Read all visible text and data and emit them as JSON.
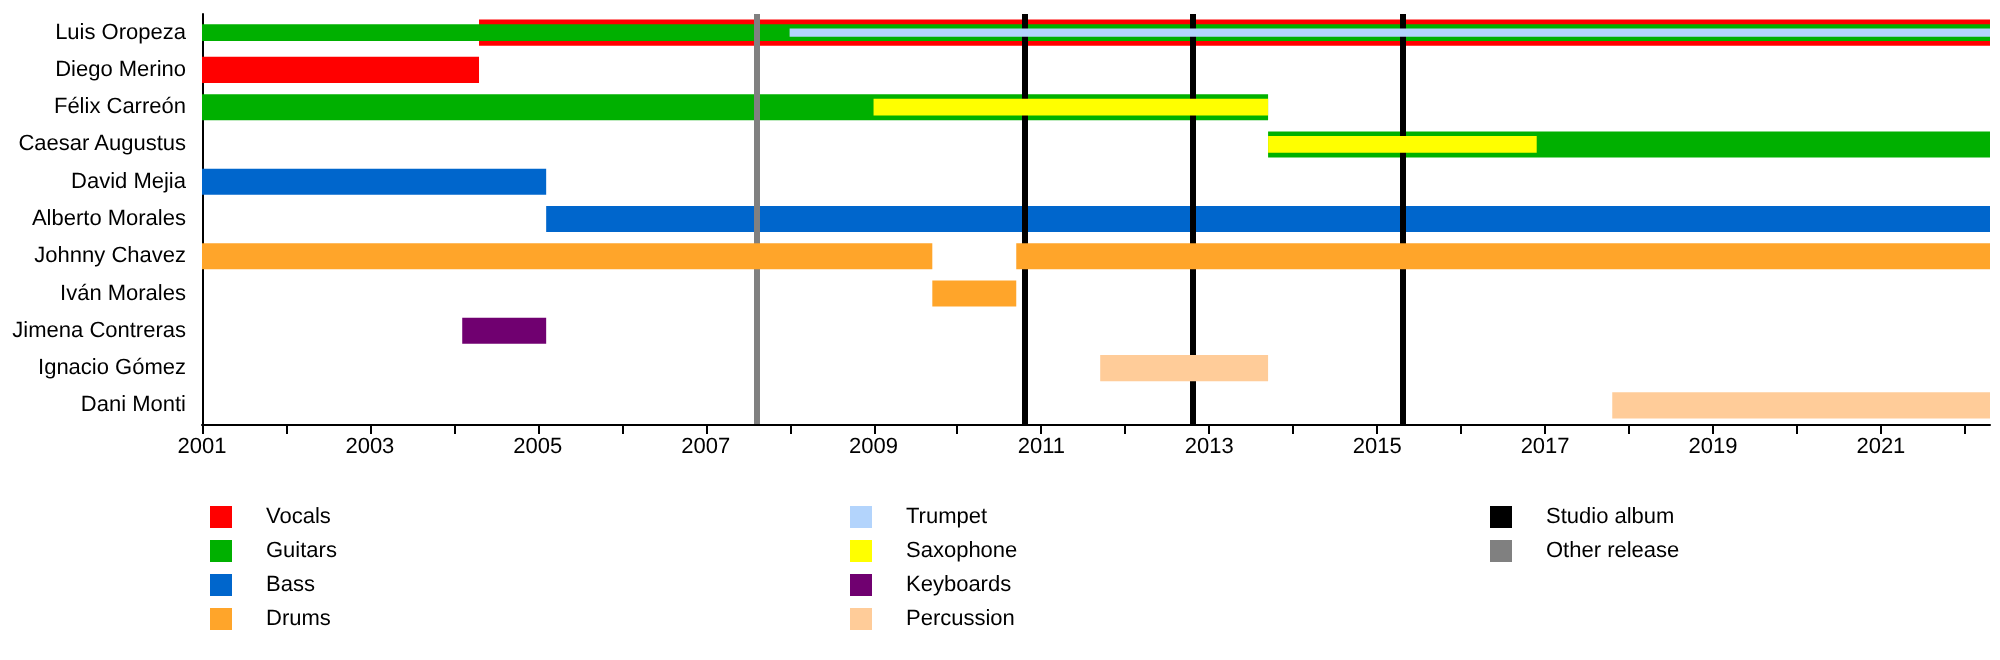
{
  "chart_data": {
    "type": "bar",
    "orientation": "horizontal",
    "categories": [
      "Luis Oropeza",
      "Diego Merino",
      "Félix Carreón",
      "Caesar Augustus",
      "David Mejia",
      "Alberto Morales",
      "Johnny Chavez",
      "Iván Morales",
      "Jimena Contreras",
      "Ignacio Gómez",
      "Dani Monti"
    ],
    "series": [
      {
        "name": "Vocals",
        "color": "#ff0000",
        "base": [
          2004.3,
          2001,
          null,
          null,
          null,
          null,
          null,
          null,
          null,
          null,
          null
        ],
        "values": [
          18.0,
          3.3,
          null,
          null,
          null,
          null,
          null,
          null,
          null,
          null,
          null
        ]
      },
      {
        "name": "Guitars",
        "color": "#00b000",
        "base": [
          2001,
          null,
          2001,
          2013.7,
          null,
          null,
          null,
          null,
          null,
          null,
          null
        ],
        "values": [
          21.3,
          null,
          12.7,
          8.6,
          null,
          null,
          null,
          null,
          null,
          null,
          null
        ]
      },
      {
        "name": "Bass",
        "color": "#0066cc",
        "base": [
          null,
          null,
          null,
          null,
          2001,
          2005.1,
          null,
          null,
          null,
          null,
          null
        ],
        "values": [
          null,
          null,
          null,
          null,
          4.1,
          17.2,
          null,
          null,
          null,
          null,
          null
        ]
      },
      {
        "name": "Drums",
        "color": "#ffa52a",
        "base": [
          null,
          null,
          null,
          null,
          null,
          null,
          2001,
          2009.7,
          null,
          null,
          null
        ],
        "values": [
          null,
          null,
          null,
          null,
          null,
          null,
          8.7,
          1.0,
          null,
          null,
          null
        ]
      },
      {
        "color": "#ffa52a",
        "base": [
          null,
          null,
          null,
          null,
          null,
          null,
          2010.7,
          null,
          null,
          null,
          null
        ],
        "values": [
          null,
          null,
          null,
          null,
          null,
          null,
          11.6,
          null,
          null,
          null,
          null
        ]
      },
      {
        "name": "Trumpet",
        "color": "#b3d4fc",
        "base": [
          2008.0,
          null,
          null,
          null,
          null,
          null,
          null,
          null,
          null,
          null,
          null
        ],
        "values": [
          14.3,
          null,
          null,
          null,
          null,
          null,
          null,
          null,
          null,
          null,
          null
        ]
      },
      {
        "name": "Saxophone",
        "color": "#ffff00",
        "base": [
          null,
          null,
          2009.0,
          2013.7,
          null,
          null,
          null,
          null,
          null,
          null,
          null
        ],
        "values": [
          null,
          null,
          4.7,
          3.2,
          null,
          null,
          null,
          null,
          null,
          null,
          null
        ]
      },
      {
        "name": "Keyboards",
        "color": "#700070",
        "base": [
          null,
          null,
          null,
          null,
          null,
          null,
          null,
          null,
          2004.1,
          null,
          null
        ],
        "values": [
          null,
          null,
          null,
          null,
          null,
          null,
          null,
          null,
          1.0,
          null,
          null
        ]
      },
      {
        "name": "Percussion",
        "color": "#ffcc99",
        "base": [
          null,
          null,
          null,
          null,
          null,
          null,
          null,
          null,
          null,
          2011.7,
          2017.8
        ],
        "values": [
          null,
          null,
          null,
          null,
          null,
          null,
          null,
          null,
          null,
          2.0,
          4.5
        ]
      }
    ],
    "xlim": [
      2001,
      2022.3
    ],
    "xticks": [
      2001,
      {
        "value": 2002,
        "label": null
      },
      2003,
      {
        "value": 2004,
        "label": null
      },
      2005,
      {
        "value": 2006,
        "label": null
      },
      2007,
      {
        "value": 2008,
        "label": null
      },
      2009,
      {
        "value": 2010,
        "label": null
      },
      2011,
      {
        "value": 2012,
        "label": null
      },
      2013,
      {
        "value": 2014,
        "label": null
      },
      2015,
      {
        "value": 2016,
        "label": null
      },
      2017,
      {
        "value": 2018,
        "label": null
      },
      2019,
      {
        "value": 2020,
        "label": null
      },
      2021,
      {
        "value": 2022,
        "label": null
      }
    ],
    "ref_lines": [
      {
        "axis": "x",
        "value": 2010.8,
        "label": "Studio album",
        "color": "#000000"
      },
      {
        "axis": "x",
        "value": 2012.8,
        "color": "#000000"
      },
      {
        "axis": "x",
        "value": 2015.3,
        "color": "#000000"
      },
      {
        "axis": "x",
        "value": 2007.6,
        "label": "Other release",
        "color": "#808080"
      }
    ],
    "legend": "bottom"
  }
}
